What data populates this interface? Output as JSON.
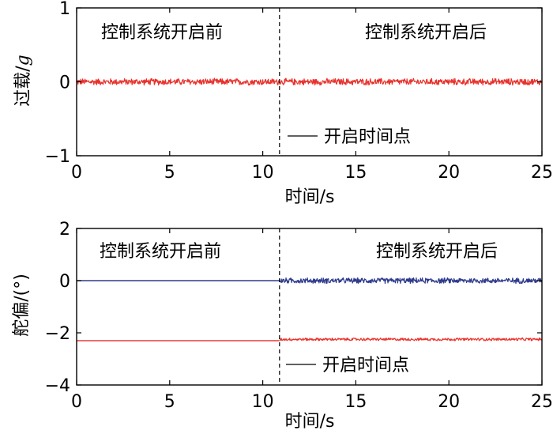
{
  "chart_data": [
    {
      "type": "line",
      "xlabel": "时间/s",
      "ylabel_main": "过载/",
      "ylabel_italic": "g",
      "xlim": [
        0,
        25
      ],
      "ylim": [
        -1,
        1
      ],
      "xticks": [
        0,
        5,
        10,
        15,
        20,
        25
      ],
      "yticks": [
        -1,
        0,
        1
      ],
      "ytick_labels": [
        "−1",
        "0",
        "1"
      ],
      "grid": false,
      "switch_time": 10.9,
      "annotation_before": "控制系统开启前",
      "annotation_after": "控制系统开启后",
      "legend_label": "开启时间点",
      "series": [
        {
          "color": "#e8322c",
          "segments": [
            {
              "x_start": 0,
              "x_end": 25,
              "mean": 0.0,
              "noise_amplitude": 0.05
            }
          ]
        }
      ]
    },
    {
      "type": "line",
      "xlabel": "时间/s",
      "ylabel_main": "舵偏/(°)",
      "ylabel_italic": "",
      "xlim": [
        0,
        25
      ],
      "ylim": [
        -4,
        2
      ],
      "xticks": [
        0,
        5,
        10,
        15,
        20,
        25
      ],
      "yticks": [
        -4,
        -2,
        0,
        2
      ],
      "ytick_labels": [
        "−4",
        "−2",
        "0",
        "2"
      ],
      "grid": false,
      "switch_time": 10.9,
      "annotation_before": "控制系统开启前",
      "annotation_after": "控制系统开启后",
      "legend_label": "开启时间点",
      "series": [
        {
          "color": "#2e3a8c",
          "segments": [
            {
              "x_start": 0,
              "x_end": 10.9,
              "mean": 0.0,
              "noise_amplitude": 0.0
            },
            {
              "x_start": 10.9,
              "x_end": 25,
              "mean": 0.0,
              "noise_amplitude": 0.12
            }
          ]
        },
        {
          "color": "#e8322c",
          "segments": [
            {
              "x_start": 0,
              "x_end": 10.9,
              "mean": -2.3,
              "noise_amplitude": 0.0
            },
            {
              "x_start": 10.9,
              "x_end": 25,
              "mean": -2.25,
              "noise_amplitude": 0.06
            }
          ]
        }
      ]
    }
  ]
}
